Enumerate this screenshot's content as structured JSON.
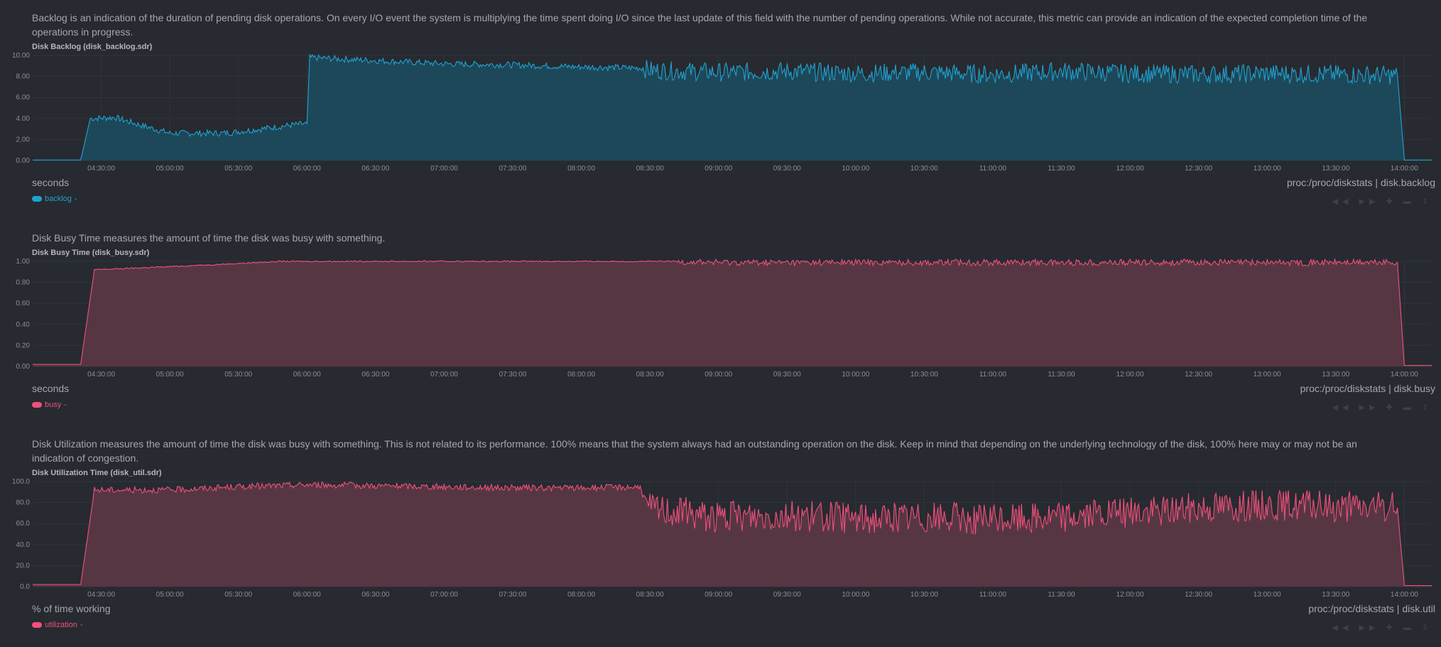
{
  "panels": [
    {
      "description": "Backlog is an indication of the duration of pending disk operations. On every I/O event the system is multiplying the time spent doing I/O since the last update of this field with the number of pending operations. While not accurate, this metric can provide an indication of the expected completion time of the operations in progress.",
      "units": "seconds",
      "context": "proc:/proc/diskstats | disk.backlog",
      "legend": {
        "label": "backlog",
        "value": "-",
        "color": "#1fa2d1"
      }
    },
    {
      "description": "Disk Busy Time measures the amount of time the disk was busy with something.",
      "units": "seconds",
      "context": "proc:/proc/diskstats | disk.busy",
      "legend": {
        "label": "busy",
        "value": "-",
        "color": "#f0507a"
      }
    },
    {
      "description": "Disk Utilization measures the amount of time the disk was busy with something. This is not related to its performance. 100% means that the system always had an outstanding operation on the disk. Keep in mind that depending on the underlying technology of the disk, 100% here may or may not be an indication of congestion.",
      "units": "% of time working",
      "context": "proc:/proc/diskstats | disk.util",
      "legend": {
        "label": "utilization",
        "value": "-",
        "color": "#f0507a"
      }
    }
  ],
  "toolbar_glyphs": "◀◀ ▶▶ ✚ ▬ ⇕",
  "chart_data": [
    {
      "type": "area",
      "title": "Disk Backlog (disk_backlog.sdr)",
      "ylabel": "seconds",
      "ylim": [
        0,
        10
      ],
      "yticks": [
        "0.00",
        "2.00",
        "4.00",
        "6.00",
        "8.00",
        "10.00"
      ],
      "xticks": [
        "04:30:00",
        "05:00:00",
        "05:30:00",
        "06:00:00",
        "06:30:00",
        "07:00:00",
        "07:30:00",
        "08:00:00",
        "08:30:00",
        "09:00:00",
        "09:30:00",
        "10:00:00",
        "10:30:00",
        "11:00:00",
        "11:30:00",
        "12:00:00",
        "12:30:00",
        "13:00:00",
        "13:30:00",
        "14:00:00"
      ],
      "color": "#1fa2d1",
      "fill": "#1c4a5c",
      "series": [
        {
          "name": "backlog",
          "values": [
            [
              4.0,
              0.05
            ],
            [
              4.35,
              0.05
            ],
            [
              4.42,
              4.0
            ],
            [
              4.6,
              4.1
            ],
            [
              4.75,
              3.5
            ],
            [
              5.0,
              2.6
            ],
            [
              5.4,
              2.6
            ],
            [
              5.6,
              2.9
            ],
            [
              5.9,
              3.4
            ],
            [
              6.0,
              3.5
            ],
            [
              6.02,
              9.8
            ],
            [
              6.5,
              9.5
            ],
            [
              7.0,
              9.2
            ],
            [
              7.5,
              9.1
            ],
            [
              8.0,
              8.9
            ],
            [
              8.45,
              8.8
            ],
            [
              8.5,
              8.6
            ],
            [
              9.0,
              8.4
            ],
            [
              9.5,
              8.5
            ],
            [
              10.0,
              8.3
            ],
            [
              10.5,
              8.4
            ],
            [
              11.0,
              8.2
            ],
            [
              11.5,
              8.5
            ],
            [
              12.0,
              8.3
            ],
            [
              12.5,
              8.2
            ],
            [
              13.0,
              8.3
            ],
            [
              13.5,
              8.2
            ],
            [
              13.95,
              8.1
            ],
            [
              14.0,
              0.05
            ],
            [
              14.2,
              0.05
            ]
          ]
        }
      ]
    },
    {
      "type": "area",
      "title": "Disk Busy Time (disk_busy.sdr)",
      "ylabel": "seconds",
      "ylim": [
        0,
        1
      ],
      "yticks": [
        "0.00",
        "0.20",
        "0.40",
        "0.60",
        "0.80",
        "1.00"
      ],
      "xticks": [
        "04:30:00",
        "05:00:00",
        "05:30:00",
        "06:00:00",
        "06:30:00",
        "07:00:00",
        "07:30:00",
        "08:00:00",
        "08:30:00",
        "09:00:00",
        "09:30:00",
        "10:00:00",
        "10:30:00",
        "11:00:00",
        "11:30:00",
        "12:00:00",
        "12:30:00",
        "13:00:00",
        "13:30:00",
        "14:00:00"
      ],
      "color": "#f0507a",
      "fill": "#5a3746",
      "series": [
        {
          "name": "busy",
          "values": [
            [
              4.0,
              0.02
            ],
            [
              4.35,
              0.02
            ],
            [
              4.45,
              0.92
            ],
            [
              5.0,
              0.95
            ],
            [
              5.5,
              0.98
            ],
            [
              5.8,
              1.0
            ],
            [
              6.0,
              1.0
            ],
            [
              7.0,
              1.0
            ],
            [
              8.0,
              1.0
            ],
            [
              8.7,
              1.0
            ],
            [
              9.0,
              0.99
            ],
            [
              10.0,
              0.99
            ],
            [
              11.0,
              0.99
            ],
            [
              12.0,
              0.99
            ],
            [
              13.0,
              0.99
            ],
            [
              13.95,
              0.99
            ],
            [
              14.0,
              0.01
            ],
            [
              14.2,
              0.01
            ]
          ]
        }
      ]
    },
    {
      "type": "area",
      "title": "Disk Utilization Time (disk_util.sdr)",
      "ylabel": "% of time working",
      "ylim": [
        0,
        100
      ],
      "yticks": [
        "0.0",
        "20.0",
        "40.0",
        "60.0",
        "80.0",
        "100.0"
      ],
      "xticks": [
        "04:30:00",
        "05:00:00",
        "05:30:00",
        "06:00:00",
        "06:30:00",
        "07:00:00",
        "07:30:00",
        "08:00:00",
        "08:30:00",
        "09:00:00",
        "09:30:00",
        "10:00:00",
        "10:30:00",
        "11:00:00",
        "11:30:00",
        "12:00:00",
        "12:30:00",
        "13:00:00",
        "13:30:00",
        "14:00:00"
      ],
      "color": "#f0507a",
      "fill": "#5a3746",
      "series": [
        {
          "name": "utilization",
          "values": [
            [
              4.0,
              2.0
            ],
            [
              4.35,
              2.0
            ],
            [
              4.45,
              92
            ],
            [
              5.0,
              92
            ],
            [
              5.5,
              95
            ],
            [
              6.0,
              97
            ],
            [
              7.0,
              95
            ],
            [
              7.5,
              94
            ],
            [
              8.0,
              94
            ],
            [
              8.42,
              95
            ],
            [
              8.5,
              75
            ],
            [
              8.8,
              70
            ],
            [
              9.0,
              66
            ],
            [
              9.5,
              68
            ],
            [
              10.0,
              65
            ],
            [
              10.5,
              66
            ],
            [
              11.0,
              64
            ],
            [
              11.5,
              67
            ],
            [
              12.0,
              70
            ],
            [
              12.5,
              76
            ],
            [
              13.0,
              78
            ],
            [
              13.5,
              76
            ],
            [
              13.95,
              75
            ],
            [
              14.0,
              1.0
            ],
            [
              14.2,
              1.0
            ]
          ]
        }
      ]
    }
  ]
}
